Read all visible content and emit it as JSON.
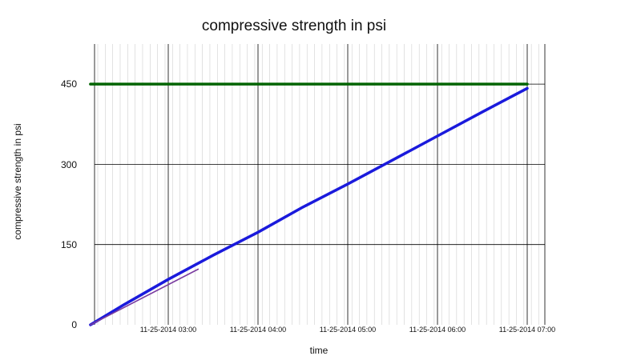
{
  "chart_data": {
    "type": "line",
    "title": "compressive strength in psi",
    "xlabel": "time",
    "ylabel": "compressive strength in psi",
    "x_range": [
      "11-25-2014 02:08",
      "11-25-2014 07:00"
    ],
    "ylim": [
      0,
      540
    ],
    "y_ticks": [
      0,
      150,
      300,
      450
    ],
    "x_ticks": [
      "11-25-2014 03:00",
      "11-25-2014 04:00",
      "11-25-2014 05:00",
      "11-25-2014 06:00",
      "11-25-2014 07:00"
    ],
    "grid": true,
    "colors": {
      "target": "#006400",
      "strength": "#1a1adc",
      "early": "#7a3ca0",
      "grid_major": "#000000",
      "grid_minor": "#d0d0d0"
    },
    "series": [
      {
        "key": "target",
        "x": [
          "11-25-2014 02:08",
          "11-25-2014 07:00"
        ],
        "y": [
          450,
          450
        ]
      },
      {
        "key": "strength",
        "x": [
          "11-25-2014 02:08",
          "11-25-2014 02:30",
          "11-25-2014 03:00",
          "11-25-2014 03:30",
          "11-25-2014 04:00",
          "11-25-2014 04:30",
          "11-25-2014 05:00",
          "11-25-2014 05:30",
          "11-25-2014 06:00",
          "11-25-2014 06:30",
          "11-25-2014 07:00"
        ],
        "y": [
          0,
          37,
          85,
          130,
          173,
          220,
          263,
          308,
          353,
          398,
          442
        ]
      },
      {
        "key": "early",
        "x": [
          "11-25-2014 02:08",
          "11-25-2014 03:20"
        ],
        "y": [
          0,
          104
        ]
      }
    ]
  }
}
